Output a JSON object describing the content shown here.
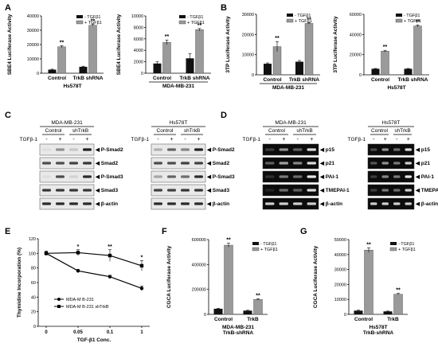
{
  "panels": {
    "A": {
      "letter": "A",
      "charts": [
        {
          "type": "bar",
          "ylabel": "SBE4 Luciferase Activity",
          "xlabel": "Hs578T",
          "categories": [
            "Control",
            "TrkB shRNA"
          ],
          "yticks": [
            "0",
            "10000",
            "20000",
            "30000",
            "40000"
          ],
          "ylim": [
            0,
            40000
          ],
          "series": [
            {
              "name": "- TGFβ1",
              "values": [
                2500,
                4500
              ],
              "errors": [
                300,
                400
              ]
            },
            {
              "name": "+ TGFβ1",
              "values": [
                18500,
                33500
              ],
              "errors": [
                700,
                600
              ]
            }
          ],
          "sig": [
            "**",
            "**"
          ]
        },
        {
          "type": "bar",
          "ylabel": "SBE4 Luciferase Activity",
          "xlabel": "MDA-MB-231",
          "categories": [
            "Control",
            "TrkB shRNA"
          ],
          "yticks": [
            "0",
            "2000",
            "4000",
            "6000",
            "8000",
            "10000"
          ],
          "ylim": [
            0,
            10000
          ],
          "series": [
            {
              "name": "- TGFβ1",
              "values": [
                1700,
                2600
              ],
              "errors": [
                300,
                800
              ]
            },
            {
              "name": "+ TGFβ1",
              "values": [
                5400,
                7600
              ],
              "errors": [
                400,
                200
              ]
            }
          ],
          "sig": [
            "**",
            "**"
          ]
        }
      ]
    },
    "B": {
      "letter": "B",
      "charts": [
        {
          "type": "bar",
          "ylabel": "3TP Luciferase Activity",
          "xlabel": "MDA-MB-231",
          "categories": [
            "Control",
            "TrkB shRNA"
          ],
          "yticks": [
            "0",
            "10000",
            "20000",
            "30000"
          ],
          "ylim": [
            0,
            30000
          ],
          "series": [
            {
              "name": "- TGFβ1",
              "values": [
                5500,
                6500
              ],
              "errors": [
                400,
                600
              ]
            },
            {
              "name": "+ TGFβ1",
              "values": [
                14000,
                25500
              ],
              "errors": [
                2500,
                400
              ]
            }
          ],
          "sig": [
            "**",
            "**"
          ]
        },
        {
          "type": "bar",
          "ylabel": "3TP Luciferase Activity",
          "xlabel": "Hs578T",
          "categories": [
            "Control",
            "TrkB shRNA"
          ],
          "yticks": [
            "0",
            "20000",
            "40000",
            "60000"
          ],
          "ylim": [
            0,
            60000
          ],
          "series": [
            {
              "name": "- TGFβ1",
              "values": [
                6000,
                6000
              ],
              "errors": [
                300,
                300
              ]
            },
            {
              "name": "+ TGFβ1",
              "values": [
                23500,
                48500
              ],
              "errors": [
                800,
                1000
              ]
            }
          ],
          "sig": [
            "**",
            "**"
          ]
        }
      ]
    },
    "C": {
      "letter": "C",
      "blots": [
        {
          "cell": "MDA-MB-231",
          "groups": [
            "Control",
            "shTrkB"
          ],
          "treat_label": "TGFβ-1",
          "lanes": [
            "-",
            "+",
            "-",
            "+"
          ],
          "rows": [
            "P-Smad2",
            "Smad2",
            "P-Smad3",
            "Smad3",
            "β-actin"
          ]
        },
        {
          "cell": "Hs578T",
          "groups": [
            "Control",
            "shTrkB"
          ],
          "treat_label": "TGFβ-1",
          "lanes": [
            "-",
            "+",
            "-",
            "+"
          ],
          "rows": [
            "P-Smad2",
            "Smad2",
            "P-Smad3",
            "Smad3",
            "β-actin"
          ]
        }
      ]
    },
    "D": {
      "letter": "D",
      "gels": [
        {
          "cell": "MDA-MB-231",
          "groups": [
            "Control",
            "shTrkB"
          ],
          "treat_label": "TGFβ-1",
          "lanes": [
            "-",
            "+",
            "-",
            "+"
          ],
          "rows": [
            "p15",
            "p21",
            "PAI-1",
            "TMEPAI-1",
            "β-actin"
          ]
        },
        {
          "cell": "Hs578T",
          "groups": [
            "Control",
            "shTrkB"
          ],
          "treat_label": "TGFβ-1",
          "lanes": [
            "-",
            "+",
            "-",
            "+"
          ],
          "rows": [
            "p15",
            "p21",
            "PAI-1",
            "TMEPAI-1",
            "β-actin"
          ]
        }
      ]
    },
    "E": {
      "letter": "E",
      "chart": {
        "type": "line",
        "ylabel": "Thymidine Incorporation (%)",
        "xlabel": "TGF-β1 Conc.",
        "x": [
          "0",
          "0.05",
          "0.1",
          "1"
        ],
        "yticks": [
          "0",
          "20",
          "40",
          "60",
          "80",
          "100",
          "120"
        ],
        "ylim": [
          0,
          120
        ],
        "series": [
          {
            "name": "MDA-M B-231",
            "values": [
              100,
              76,
              68,
              52
            ],
            "errors": [
              2,
              2,
              2,
              3
            ]
          },
          {
            "name": "MDA-M B-231 shTrkB",
            "values": [
              100,
              101,
              97,
              83
            ],
            "errors": [
              3,
              4,
              8,
              7
            ]
          }
        ],
        "sig": [
          "",
          "*",
          "**",
          "*"
        ]
      }
    },
    "F": {
      "letter": "F",
      "chart": {
        "type": "bar",
        "ylabel": "CGCA Luciferase Activity",
        "xlabel": "MDA-MB-231",
        "xlabel2": "TrkB-shRNA",
        "categories": [
          "Control",
          "TrkB"
        ],
        "yticks": [
          "0",
          "200000",
          "400000",
          "600000"
        ],
        "ylim": [
          0,
          600000
        ],
        "series": [
          {
            "name": "- TGFβ1",
            "values": [
              45000,
              30000
            ],
            "errors": [
              4000,
              3000
            ]
          },
          {
            "name": "+ TGFβ1",
            "values": [
              555000,
              120000
            ],
            "errors": [
              15000,
              5000
            ]
          }
        ],
        "sig": [
          "**",
          "**"
        ]
      }
    },
    "G": {
      "letter": "G",
      "chart": {
        "type": "bar",
        "ylabel": "CGCA Luciferase Activity",
        "xlabel": "Hs578T",
        "xlabel2": "TrkB-shRNA",
        "categories": [
          "Control",
          "TrkB"
        ],
        "yticks": [
          "0",
          "10000",
          "20000",
          "30000",
          "40000",
          "50000"
        ],
        "ylim": [
          0,
          50000
        ],
        "series": [
          {
            "name": "- TGFβ1",
            "values": [
              2500,
              2000
            ],
            "errors": [
              300,
              200
            ]
          },
          {
            "name": "+ TGFβ1",
            "values": [
              43000,
              13500
            ],
            "errors": [
              1500,
              500
            ]
          }
        ],
        "sig": [
          "**",
          "**"
        ]
      }
    }
  }
}
